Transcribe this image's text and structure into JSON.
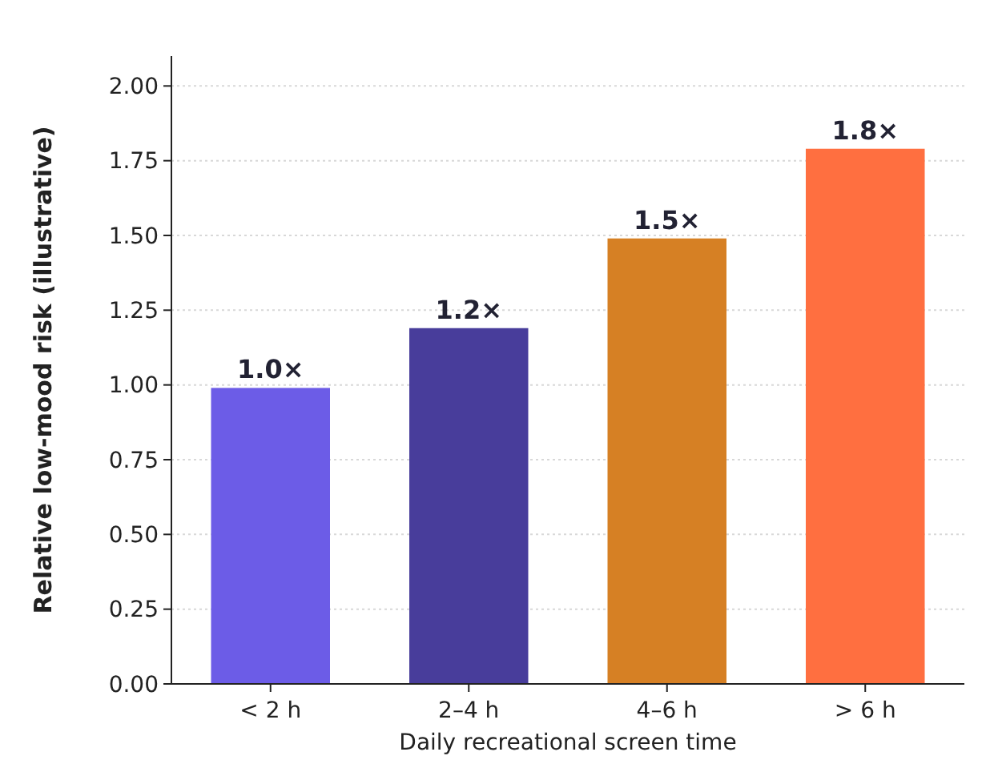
{
  "chart_data": {
    "type": "bar",
    "xlabel": "Daily recreational screen time",
    "ylabel": "Relative low-mood risk (illustrative)",
    "categories": [
      "< 2 h",
      "2–4 h",
      "4–6 h",
      "> 6 h"
    ],
    "values": [
      0.99,
      1.19,
      1.49,
      1.79
    ],
    "colors": [
      "#6c5ce7",
      "#483d9b",
      "#d68024",
      "#ff6f40"
    ],
    "value_labels": [
      "1.0×",
      "1.2×",
      "1.5×",
      "1.8×"
    ],
    "ylim": [
      0,
      2.1
    ],
    "yticks": [
      {
        "value": 0,
        "label": "0.00"
      },
      {
        "value": 0.25,
        "label": "0.25"
      },
      {
        "value": 0.5,
        "label": "0.50"
      },
      {
        "value": 0.75,
        "label": "0.75"
      },
      {
        "value": 1,
        "label": "1.00"
      },
      {
        "value": 1.25,
        "label": "1.25"
      },
      {
        "value": 1.5,
        "label": "1.50"
      },
      {
        "value": 1.75,
        "label": "1.75"
      },
      {
        "value": 2,
        "label": "2.00"
      }
    ],
    "grid": "y"
  }
}
